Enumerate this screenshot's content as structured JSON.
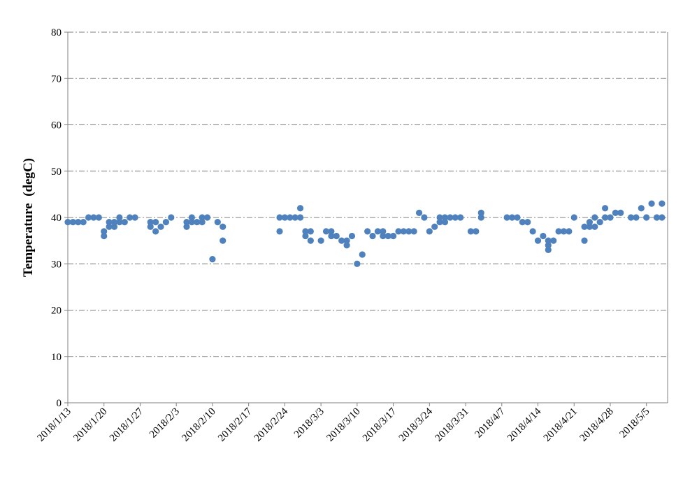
{
  "chart_data": {
    "type": "scatter",
    "title": "",
    "xlabel": "",
    "ylabel": "Temperature  (degC)",
    "ylim": [
      0,
      80
    ],
    "yticks": [
      0,
      10,
      20,
      30,
      40,
      50,
      60,
      70,
      80
    ],
    "xlim": [
      "2018/1/13",
      "2018/5/9"
    ],
    "xtick_labels": [
      "2018/1/13",
      "2018/1/20",
      "2018/1/27",
      "2018/2/3",
      "2018/2/10",
      "2018/2/17",
      "2018/2/24",
      "2018/3/3",
      "2018/3/10",
      "2018/3/17",
      "2018/3/24",
      "2018/3/31",
      "2018/4/7",
      "2018/4/14",
      "2018/4/21",
      "2018/4/28",
      "2018/5/5"
    ],
    "grid": true,
    "legend": "none",
    "marker_color": "#4F81BD",
    "series": [
      {
        "name": "Temperature",
        "points": [
          [
            "2018/1/13",
            39
          ],
          [
            "2018/1/14",
            39
          ],
          [
            "2018/1/15",
            39
          ],
          [
            "2018/1/16",
            39
          ],
          [
            "2018/1/17",
            40
          ],
          [
            "2018/1/18",
            40
          ],
          [
            "2018/1/19",
            40
          ],
          [
            "2018/1/20",
            37
          ],
          [
            "2018/1/20",
            36
          ],
          [
            "2018/1/21",
            39
          ],
          [
            "2018/1/21",
            38
          ],
          [
            "2018/1/22",
            39
          ],
          [
            "2018/1/22",
            38
          ],
          [
            "2018/1/23",
            40
          ],
          [
            "2018/1/23",
            39
          ],
          [
            "2018/1/24",
            39
          ],
          [
            "2018/1/25",
            40
          ],
          [
            "2018/1/26",
            40
          ],
          [
            "2018/1/29",
            39
          ],
          [
            "2018/1/29",
            38
          ],
          [
            "2018/1/30",
            39
          ],
          [
            "2018/1/30",
            37
          ],
          [
            "2018/1/31",
            38
          ],
          [
            "2018/2/1",
            39
          ],
          [
            "2018/2/2",
            40
          ],
          [
            "2018/2/5",
            39
          ],
          [
            "2018/2/5",
            38
          ],
          [
            "2018/2/6",
            40
          ],
          [
            "2018/2/6",
            39
          ],
          [
            "2018/2/7",
            39
          ],
          [
            "2018/2/8",
            40
          ],
          [
            "2018/2/8",
            39
          ],
          [
            "2018/2/9",
            40
          ],
          [
            "2018/2/10",
            31
          ],
          [
            "2018/2/11",
            39
          ],
          [
            "2018/2/12",
            38
          ],
          [
            "2018/2/12",
            35
          ],
          [
            "2018/2/23",
            40
          ],
          [
            "2018/2/23",
            37
          ],
          [
            "2018/2/24",
            40
          ],
          [
            "2018/2/25",
            40
          ],
          [
            "2018/2/26",
            40
          ],
          [
            "2018/2/27",
            42
          ],
          [
            "2018/2/27",
            40
          ],
          [
            "2018/2/28",
            37
          ],
          [
            "2018/2/28",
            36
          ],
          [
            "2018/3/1",
            37
          ],
          [
            "2018/3/1",
            35
          ],
          [
            "2018/3/3",
            35
          ],
          [
            "2018/3/4",
            37
          ],
          [
            "2018/3/5",
            37
          ],
          [
            "2018/3/5",
            36
          ],
          [
            "2018/3/6",
            36
          ],
          [
            "2018/3/7",
            35
          ],
          [
            "2018/3/8",
            35
          ],
          [
            "2018/3/8",
            34
          ],
          [
            "2018/3/9",
            36
          ],
          [
            "2018/3/10",
            30
          ],
          [
            "2018/3/11",
            32
          ],
          [
            "2018/3/12",
            37
          ],
          [
            "2018/3/13",
            36
          ],
          [
            "2018/3/14",
            37
          ],
          [
            "2018/3/15",
            37
          ],
          [
            "2018/3/15",
            36
          ],
          [
            "2018/3/16",
            36
          ],
          [
            "2018/3/17",
            36
          ],
          [
            "2018/3/18",
            37
          ],
          [
            "2018/3/19",
            37
          ],
          [
            "2018/3/20",
            37
          ],
          [
            "2018/3/21",
            37
          ],
          [
            "2018/3/22",
            41
          ],
          [
            "2018/3/23",
            40
          ],
          [
            "2018/3/24",
            37
          ],
          [
            "2018/3/25",
            38
          ],
          [
            "2018/3/26",
            40
          ],
          [
            "2018/3/26",
            39
          ],
          [
            "2018/3/27",
            40
          ],
          [
            "2018/3/27",
            39
          ],
          [
            "2018/3/28",
            40
          ],
          [
            "2018/3/29",
            40
          ],
          [
            "2018/3/30",
            40
          ],
          [
            "2018/4/1",
            37
          ],
          [
            "2018/4/2",
            37
          ],
          [
            "2018/4/3",
            41
          ],
          [
            "2018/4/3",
            40
          ],
          [
            "2018/4/8",
            40
          ],
          [
            "2018/4/9",
            40
          ],
          [
            "2018/4/10",
            40
          ],
          [
            "2018/4/11",
            39
          ],
          [
            "2018/4/12",
            39
          ],
          [
            "2018/4/13",
            37
          ],
          [
            "2018/4/14",
            35
          ],
          [
            "2018/4/15",
            36
          ],
          [
            "2018/4/16",
            35
          ],
          [
            "2018/4/16",
            34
          ],
          [
            "2018/4/16",
            33
          ],
          [
            "2018/4/17",
            35
          ],
          [
            "2018/4/18",
            37
          ],
          [
            "2018/4/19",
            37
          ],
          [
            "2018/4/20",
            37
          ],
          [
            "2018/4/21",
            40
          ],
          [
            "2018/4/23",
            38
          ],
          [
            "2018/4/23",
            35
          ],
          [
            "2018/4/24",
            39
          ],
          [
            "2018/4/24",
            38
          ],
          [
            "2018/4/25",
            40
          ],
          [
            "2018/4/25",
            38
          ],
          [
            "2018/4/26",
            39
          ],
          [
            "2018/4/27",
            42
          ],
          [
            "2018/4/27",
            40
          ],
          [
            "2018/4/28",
            40
          ],
          [
            "2018/4/29",
            41
          ],
          [
            "2018/4/30",
            41
          ],
          [
            "2018/5/2",
            40
          ],
          [
            "2018/5/3",
            40
          ],
          [
            "2018/5/4",
            42
          ],
          [
            "2018/5/5",
            40
          ],
          [
            "2018/5/6",
            43
          ],
          [
            "2018/5/7",
            40
          ],
          [
            "2018/5/8",
            43
          ],
          [
            "2018/5/8",
            40
          ]
        ]
      }
    ]
  }
}
